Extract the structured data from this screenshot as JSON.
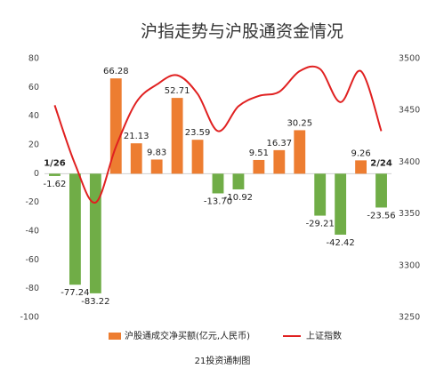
{
  "chart_data": {
    "type": "bar-line",
    "title": "沪指走势与沪股通资金情况",
    "footer": "21投资通制图",
    "categories": [
      "1/26",
      null,
      null,
      null,
      null,
      null,
      null,
      null,
      null,
      null,
      null,
      null,
      null,
      null,
      null,
      null,
      "2/24"
    ],
    "series": [
      {
        "name": "沪股通成交净买额(亿元,人民币)",
        "type": "bar",
        "color": "#ed7d31",
        "negative_color": "#70ad47",
        "values": [
          -1.62,
          -77.24,
          -83.22,
          66.28,
          21.13,
          9.83,
          52.71,
          23.59,
          -13.7,
          -10.92,
          9.51,
          16.37,
          30.25,
          -29.21,
          -42.42,
          9.26,
          -23.56
        ],
        "value_labels": [
          "-1.62",
          "-77.24",
          "-83.22",
          "66.28",
          "21.13",
          "9.83",
          "52.71",
          "23.59",
          "-13.70",
          "-10.92",
          "9.51",
          "16.37",
          "30.25",
          "-29.21",
          "-42.42",
          "9.26",
          "-23.56"
        ]
      },
      {
        "name": "上证指数",
        "type": "line",
        "axis": "y2",
        "color": "#e02020",
        "values": [
          3455,
          3398,
          3361,
          3415,
          3458,
          3475,
          3484,
          3466,
          3430,
          3454,
          3464,
          3468,
          3488,
          3490,
          3458,
          3488,
          3430
        ]
      }
    ],
    "ylim": [
      -100,
      80
    ],
    "yticks": [
      80,
      60,
      40,
      20,
      0,
      -20,
      -40,
      -60,
      -80,
      -100
    ],
    "y2lim": [
      3250,
      3500
    ],
    "y2ticks": [
      3500,
      3450,
      3400,
      3350,
      3300,
      3250
    ],
    "legend": "bottom"
  }
}
